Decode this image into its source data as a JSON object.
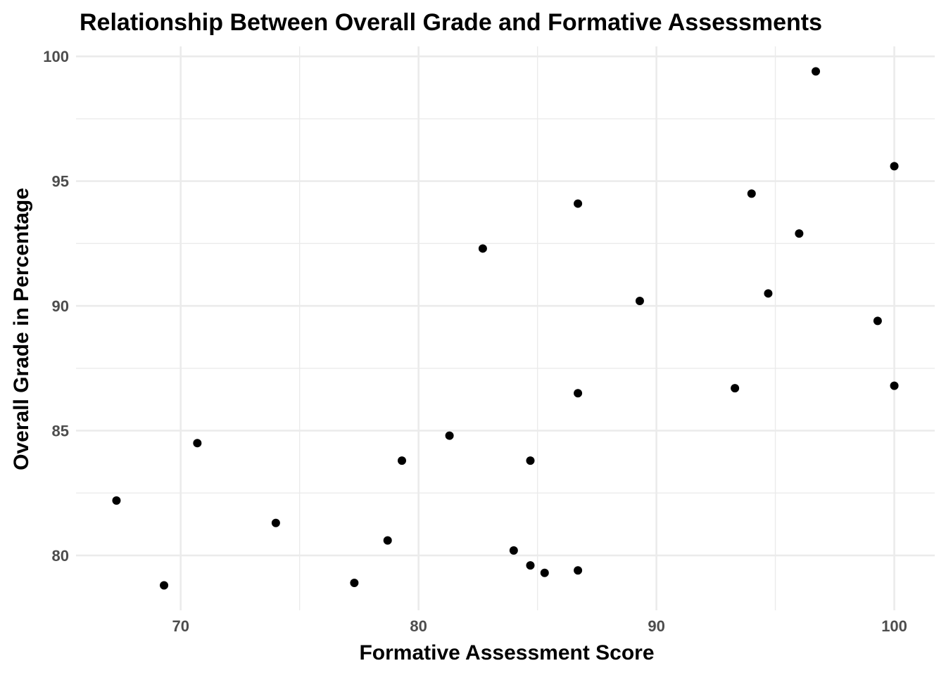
{
  "chart_data": {
    "type": "scatter",
    "title": "Relationship Between Overall Grade and Formative Assessments",
    "xlabel": "Formative Assessment Score",
    "ylabel": "Overall Grade in Percentage",
    "xlim": [
      65.6,
      101.7
    ],
    "ylim": [
      77.8,
      100.4
    ],
    "x_ticks": [
      70,
      80,
      90,
      100
    ],
    "y_ticks": [
      80,
      85,
      90,
      95,
      100
    ],
    "x_tick_labels": [
      "70",
      "80",
      "90",
      "100"
    ],
    "y_tick_labels": [
      "80",
      "85",
      "90",
      "95",
      "100"
    ],
    "grid": true,
    "legend": "none",
    "point_color": "#000000",
    "points": [
      {
        "x": 67.3,
        "y": 82.2
      },
      {
        "x": 69.3,
        "y": 78.8
      },
      {
        "x": 70.7,
        "y": 84.5
      },
      {
        "x": 74.0,
        "y": 81.3
      },
      {
        "x": 77.3,
        "y": 78.9
      },
      {
        "x": 78.7,
        "y": 80.6
      },
      {
        "x": 79.3,
        "y": 83.8
      },
      {
        "x": 81.3,
        "y": 84.8
      },
      {
        "x": 82.7,
        "y": 92.3
      },
      {
        "x": 84.0,
        "y": 80.2
      },
      {
        "x": 84.7,
        "y": 79.6
      },
      {
        "x": 84.7,
        "y": 83.8
      },
      {
        "x": 85.3,
        "y": 79.3
      },
      {
        "x": 86.7,
        "y": 79.4
      },
      {
        "x": 86.7,
        "y": 86.5
      },
      {
        "x": 86.7,
        "y": 94.1
      },
      {
        "x": 89.3,
        "y": 90.2
      },
      {
        "x": 93.3,
        "y": 86.7
      },
      {
        "x": 94.0,
        "y": 94.5
      },
      {
        "x": 94.7,
        "y": 90.5
      },
      {
        "x": 96.0,
        "y": 92.9
      },
      {
        "x": 96.7,
        "y": 99.4
      },
      {
        "x": 99.3,
        "y": 89.4
      },
      {
        "x": 100.0,
        "y": 86.8
      },
      {
        "x": 100.0,
        "y": 95.6
      }
    ]
  }
}
